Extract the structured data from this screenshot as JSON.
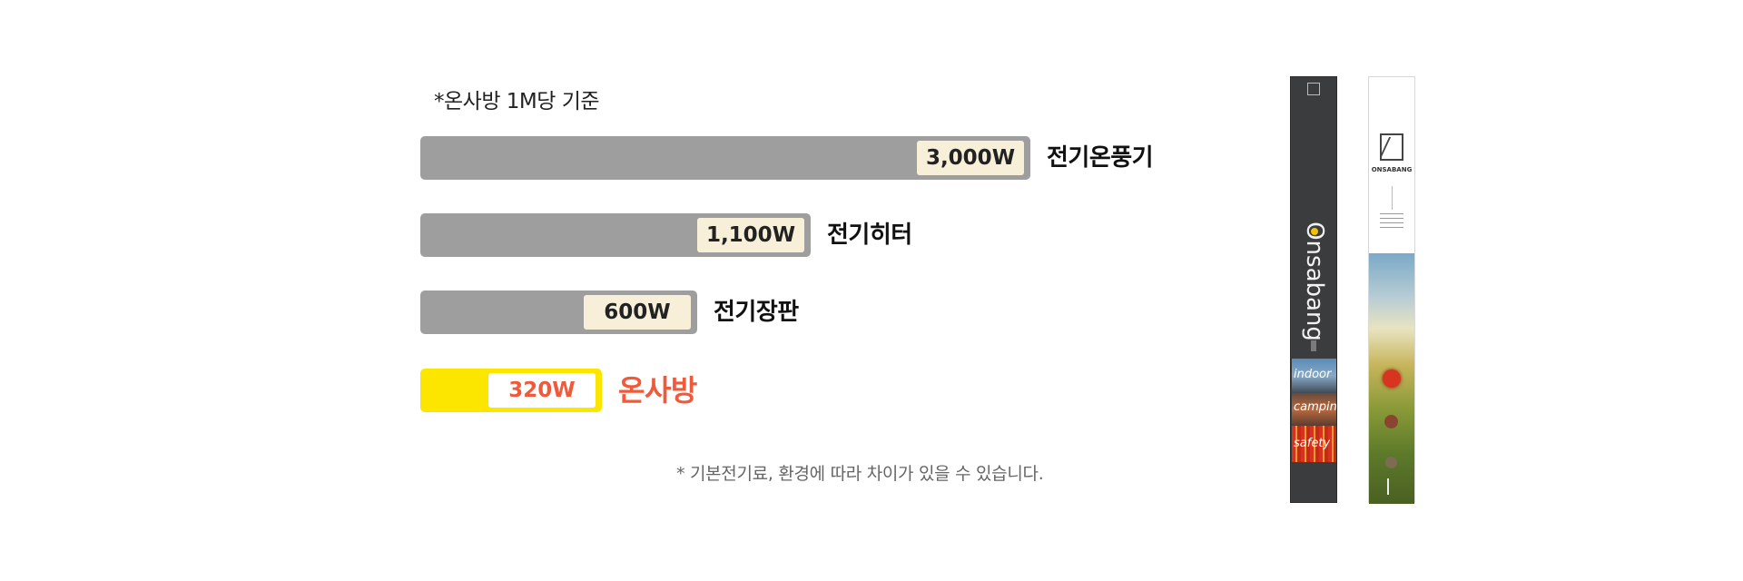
{
  "basis_note": "*온사방 1M당 기준",
  "footnote": "* 기본전기료, 환경에 따라 차이가 있을 수 있습니다.",
  "colors": {
    "bar_default": "#9e9e9e",
    "bar_highlight": "#fce600",
    "label_default": "#111111",
    "label_highlight": "#f05a3a",
    "value_box": "#f8efd8",
    "value_box_highlight": "#ffffff"
  },
  "chart_data": {
    "type": "bar",
    "orientation": "horizontal",
    "categories": [
      "전기온풍기",
      "전기히터",
      "전기장판",
      "온사방"
    ],
    "values": [
      3000,
      1100,
      600,
      320
    ],
    "value_labels": [
      "3,000W",
      "1,100W",
      "600W",
      "320W"
    ],
    "highlight": "온사방",
    "unit": "W",
    "grid": false,
    "legend": "none"
  },
  "product_images": {
    "dark_stick": {
      "brand": "Onsabang",
      "panels": [
        "indoor",
        "camping",
        "safety"
      ]
    },
    "light_stick": {
      "brand": "ONSABANG"
    }
  }
}
